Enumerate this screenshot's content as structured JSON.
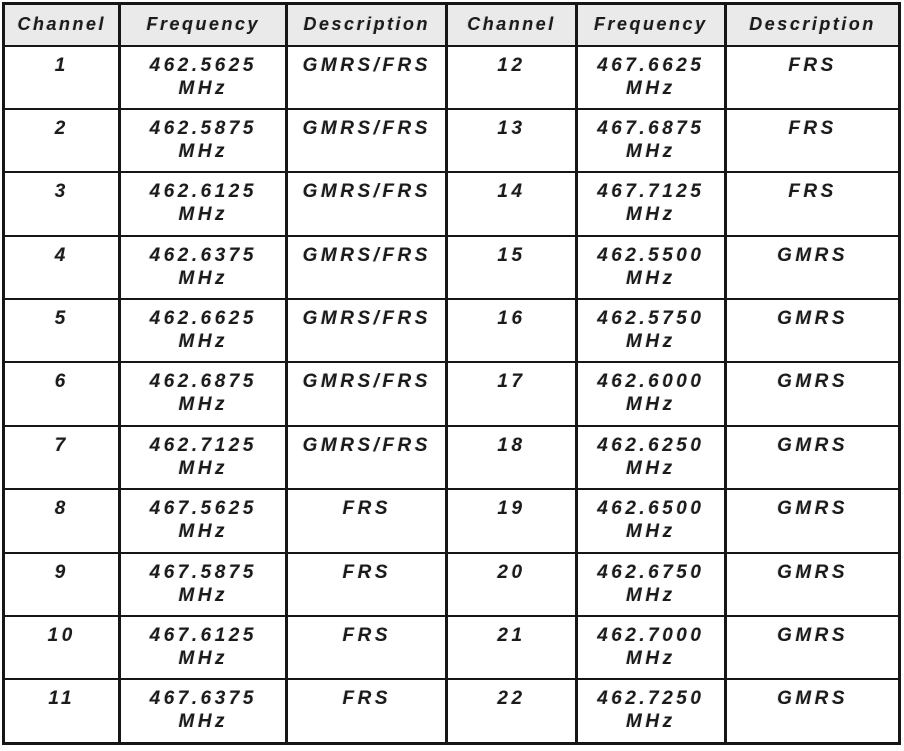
{
  "table": {
    "column_headers": [
      "Channel",
      "Frequency",
      "Description",
      "Channel",
      "Frequency",
      "Description"
    ],
    "rows": [
      {
        "left": {
          "channel": "1",
          "frequency": "462.5625",
          "unit": "MHz",
          "description": "GMRS/FRS"
        },
        "right": {
          "channel": "12",
          "frequency": "467.6625",
          "unit": "MHz",
          "description": "FRS"
        }
      },
      {
        "left": {
          "channel": "2",
          "frequency": "462.5875",
          "unit": "MHz",
          "description": "GMRS/FRS"
        },
        "right": {
          "channel": "13",
          "frequency": "467.6875",
          "unit": "MHz",
          "description": "FRS"
        }
      },
      {
        "left": {
          "channel": "3",
          "frequency": "462.6125",
          "unit": "MHz",
          "description": "GMRS/FRS"
        },
        "right": {
          "channel": "14",
          "frequency": "467.7125",
          "unit": "MHz",
          "description": "FRS"
        }
      },
      {
        "left": {
          "channel": "4",
          "frequency": "462.6375",
          "unit": "MHz",
          "description": "GMRS/FRS"
        },
        "right": {
          "channel": "15",
          "frequency": "462.5500",
          "unit": "MHz",
          "description": "GMRS"
        }
      },
      {
        "left": {
          "channel": "5",
          "frequency": "462.6625",
          "unit": "MHz",
          "description": "GMRS/FRS"
        },
        "right": {
          "channel": "16",
          "frequency": "462.5750",
          "unit": "MHz",
          "description": "GMRS"
        }
      },
      {
        "left": {
          "channel": "6",
          "frequency": "462.6875",
          "unit": "MHz",
          "description": "GMRS/FRS"
        },
        "right": {
          "channel": "17",
          "frequency": "462.6000",
          "unit": "MHz",
          "description": "GMRS"
        }
      },
      {
        "left": {
          "channel": "7",
          "frequency": "462.7125",
          "unit": "MHz",
          "description": "GMRS/FRS"
        },
        "right": {
          "channel": "18",
          "frequency": "462.6250",
          "unit": "MHz",
          "description": "GMRS"
        }
      },
      {
        "left": {
          "channel": "8",
          "frequency": "467.5625",
          "unit": "MHz",
          "description": "FRS"
        },
        "right": {
          "channel": "19",
          "frequency": "462.6500",
          "unit": "MHz",
          "description": "GMRS"
        }
      },
      {
        "left": {
          "channel": "9",
          "frequency": "467.5875",
          "unit": "MHz",
          "description": "FRS"
        },
        "right": {
          "channel": "20",
          "frequency": "462.6750",
          "unit": "MHz",
          "description": "GMRS"
        }
      },
      {
        "left": {
          "channel": "10",
          "frequency": "467.6125",
          "unit": "MHz",
          "description": "FRS"
        },
        "right": {
          "channel": "21",
          "frequency": "462.7000",
          "unit": "MHz",
          "description": "GMRS"
        }
      },
      {
        "left": {
          "channel": "11",
          "frequency": "467.6375",
          "unit": "MHz",
          "description": "FRS"
        },
        "right": {
          "channel": "22",
          "frequency": "462.7250",
          "unit": "MHz",
          "description": "GMRS"
        }
      }
    ]
  },
  "colors": {
    "header_background": "#eaeaea",
    "border": "#161616",
    "text": "#1b1b1b",
    "cell_background": "#ffffff"
  }
}
